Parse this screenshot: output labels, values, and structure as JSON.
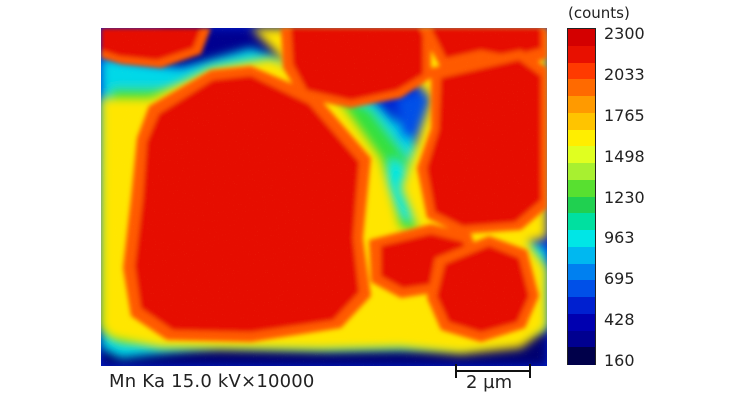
{
  "map": {
    "element": "Mn",
    "line": "Ka",
    "caption": "Mn Ka 15.0 kV×10000",
    "scale_bar_label": "2 µm"
  },
  "colorbar": {
    "unit_label": "(counts)",
    "tick_labels": [
      "2300",
      "2033",
      "1765",
      "1498",
      "1230",
      "963",
      "695",
      "428",
      "160"
    ],
    "colors_top_to_bottom": [
      "#d40000",
      "#e81000",
      "#ff3a00",
      "#ff6a00",
      "#ff9a00",
      "#ffc400",
      "#ffee00",
      "#e0ff20",
      "#a8f030",
      "#58e030",
      "#20d050",
      "#00e0a0",
      "#00e6e6",
      "#00b8f0",
      "#0080f0",
      "#0050e8",
      "#0020d0",
      "#0000b0",
      "#000090",
      "#00004a"
    ]
  },
  "palette": {
    "grain_red": "#e60d00",
    "grain_orange": "#ff5a00",
    "boundary_yellow": "#ffe600",
    "matrix_green": "#30e040",
    "matrix_cyan": "#00d8e8",
    "pore_blue": "#0030e0",
    "pore_navy": "#000070"
  }
}
